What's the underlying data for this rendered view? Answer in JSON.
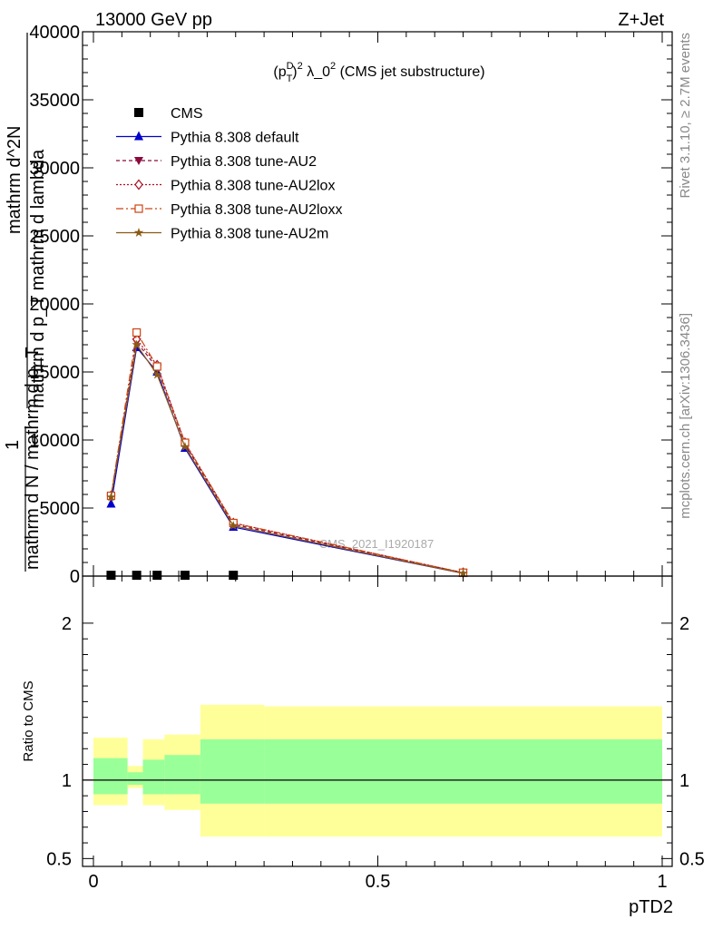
{
  "header": {
    "left": "13000 GeV pp",
    "right": "Z+Jet"
  },
  "plot_title": "(p_T^D)^2 λ_0^2 (CMS jet substructure)",
  "side_labels": {
    "rivet": "Rivet 3.1.10, ≥ 2.7M events",
    "mcplots": "mcplots.cern.ch [arXiv:1306.3436]"
  },
  "watermark": "CMS_2021_I1920187",
  "ylabel_main": {
    "line1": "mathrm d^2N",
    "line2": "mathrm d p_T mathrm d lambda",
    "line3": "1",
    "line4": "mathrm d N / mathrm d p_T"
  },
  "ylabel_ratio": "Ratio to CMS",
  "xlabel": "pTD2",
  "legend": [
    {
      "label": "CMS",
      "color": "#000000",
      "marker": "square",
      "dash": ""
    },
    {
      "label": "Pythia 8.308 default",
      "color": "#0000cc",
      "marker": "triangle-up",
      "dash": ""
    },
    {
      "label": "Pythia 8.308 tune-AU2",
      "color": "#8b0a3c",
      "marker": "triangle-down",
      "dash": "4,3"
    },
    {
      "label": "Pythia 8.308 tune-AU2lox",
      "color": "#aa1122",
      "marker": "diamond-open",
      "dash": "2,2"
    },
    {
      "label": "Pythia 8.308 tune-AU2loxx",
      "color": "#cc4411",
      "marker": "square-open",
      "dash": "8,3,2,3"
    },
    {
      "label": "Pythia 8.308 tune-AU2m",
      "color": "#8b5a14",
      "marker": "star",
      "dash": ""
    }
  ],
  "chart_data": {
    "type": "line",
    "xlim": [
      0,
      1
    ],
    "ylim": [
      0,
      40000
    ],
    "x_ticks": [
      "0",
      "0.5",
      "1"
    ],
    "y_ticks": [
      "0",
      "5000",
      "10000",
      "15000",
      "20000",
      "25000",
      "30000",
      "35000",
      "40000"
    ],
    "ratio_ylim": [
      0.45,
      2.3
    ],
    "ratio_ticks": [
      "0.5",
      "1",
      "2"
    ],
    "series": [
      {
        "name": "CMS",
        "x": [
          0.031,
          0.076,
          0.112,
          0.161,
          0.246
        ],
        "y": [
          60,
          60,
          60,
          60,
          60
        ]
      },
      {
        "name": "Pythia 8.308 default",
        "x": [
          0.031,
          0.076,
          0.112,
          0.161,
          0.246,
          0.65
        ],
        "y": [
          5300,
          16800,
          15000,
          9400,
          3600,
          200
        ]
      },
      {
        "name": "Pythia 8.308 tune-AU2",
        "x": [
          0.031,
          0.076,
          0.112,
          0.161,
          0.246,
          0.65
        ],
        "y": [
          5800,
          17200,
          15300,
          9700,
          3800,
          250
        ]
      },
      {
        "name": "Pythia 8.308 tune-AU2lox",
        "x": [
          0.031,
          0.076,
          0.112,
          0.161,
          0.246,
          0.65
        ],
        "y": [
          5900,
          17400,
          15500,
          9800,
          3900,
          250
        ]
      },
      {
        "name": "Pythia 8.308 tune-AU2loxx",
        "x": [
          0.031,
          0.076,
          0.112,
          0.161,
          0.246,
          0.65
        ],
        "y": [
          5900,
          17900,
          15400,
          9800,
          3900,
          250
        ]
      },
      {
        "name": "Pythia 8.308 tune-AU2m",
        "x": [
          0.031,
          0.076,
          0.112,
          0.161,
          0.246,
          0.65
        ],
        "y": [
          5800,
          17000,
          14800,
          9500,
          3700,
          200
        ]
      }
    ],
    "ratio_bands": {
      "edges": [
        0.0,
        0.06,
        0.087,
        0.125,
        0.188,
        0.3,
        1.0
      ],
      "yellow": [
        [
          0.84,
          1.27
        ],
        [
          0.95,
          1.09
        ],
        [
          0.84,
          1.26
        ],
        [
          0.81,
          1.29
        ],
        [
          0.64,
          1.48
        ],
        [
          0.64,
          1.47
        ]
      ],
      "green": [
        [
          0.91,
          1.14
        ],
        [
          0.97,
          1.05
        ],
        [
          0.91,
          1.13
        ],
        [
          0.91,
          1.16
        ],
        [
          0.85,
          1.26
        ],
        [
          0.85,
          1.26
        ]
      ]
    }
  }
}
